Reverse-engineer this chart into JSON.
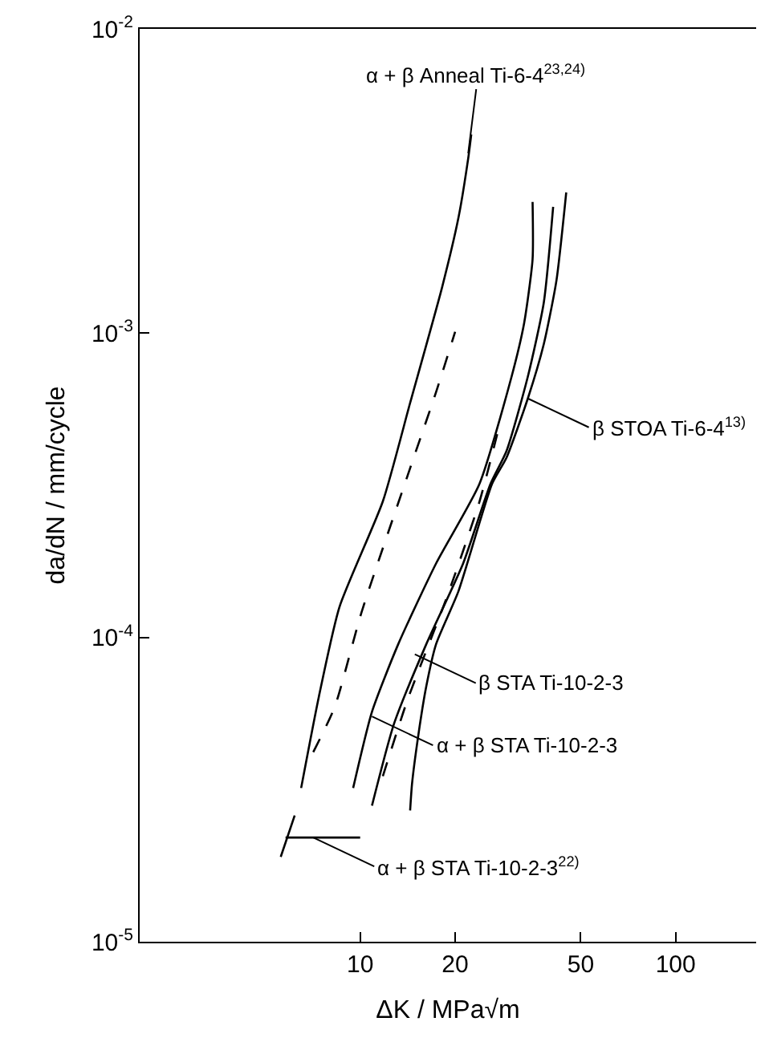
{
  "chart_data": {
    "type": "line",
    "xlabel": "ΔK / MPa√m",
    "ylabel": "da/dN / mm/cycle",
    "log": "xy",
    "marker": "none",
    "xlim": [
      2,
      180
    ],
    "xticks": [
      10,
      20,
      50,
      100
    ],
    "ylim": [
      1e-05,
      0.01
    ],
    "yticks": [
      {
        "value": 0.01,
        "label": "10$^{-2}$"
      },
      {
        "value": 0.001,
        "label": "10$^{-3}$"
      },
      {
        "value": 0.0001,
        "label": "10$^{-4}$"
      },
      {
        "value": 1e-05,
        "label": "10$^{-5}$"
      }
    ],
    "series": [
      {
        "color": "#000000",
        "line_style": "solid",
        "x": [
          6.5,
          7.4,
          8.6,
          11.8,
          14.4,
          18.2,
          20.5,
          22.0,
          22.5
        ],
        "values": [
          3.2e-05,
          6.4e-05,
          0.000126,
          0.00028,
          0.00059,
          0.00142,
          0.0024,
          0.00375,
          0.0045
        ]
      },
      {
        "color": "#000000",
        "line_style": "dashed",
        "x": [
          7.1,
          8.3,
          10.1,
          14.4,
          17.4,
          20.0
        ],
        "values": [
          4.2e-05,
          5.9e-05,
          0.000121,
          0.00036,
          0.00064,
          0.00101
        ]
      },
      {
        "color": "#000000",
        "line_style": "solid",
        "x": [
          9.5,
          10.9,
          13.2,
          17.4,
          23.9,
          30.2,
          33.1,
          35.2,
          35.2
        ],
        "values": [
          3.2e-05,
          5.7e-05,
          9.5e-05,
          0.000175,
          0.00032,
          0.00072,
          0.00108,
          0.00175,
          0.0027
        ]
      },
      {
        "color": "#000000",
        "line_style": "solid",
        "x": [
          10.9,
          12.8,
          16.2,
          21.2,
          25.9,
          29.1,
          34.0,
          38.2,
          40.9
        ],
        "values": [
          2.8e-05,
          5.2e-05,
          9.5e-05,
          0.000175,
          0.00032,
          0.00041,
          0.00072,
          0.00126,
          0.0026
        ]
      },
      {
        "color": "#000000",
        "line_style": "solid",
        "x": [
          14.4,
          14.6,
          15.3,
          16.2,
          17.4,
          20.5,
          26.2,
          29.1,
          34.0,
          38.2,
          41.9,
          45.0
        ],
        "values": [
          2.7e-05,
          3.3e-05,
          4.8e-05,
          6.9e-05,
          9.5e-05,
          0.000142,
          0.00032,
          0.00039,
          0.00061,
          0.00092,
          0.00149,
          0.0029
        ]
      },
      {
        "color": "#000000",
        "line_style": "dashed",
        "x": [
          11.8,
          14.1,
          18.9,
          23.9,
          27.8
        ],
        "values": [
          3.5e-05,
          6.2e-05,
          0.000137,
          0.00028,
          0.00051
        ]
      },
      {
        "color": "#000000",
        "line_style": "solid",
        "x": [
          5.8,
          10.0
        ],
        "values": [
          2.2e-05,
          2.2e-05
        ]
      },
      {
        "color": "#000000",
        "line_style": "solid",
        "x": [
          5.6,
          6.2
        ],
        "values": [
          1.9e-05,
          2.6e-05
        ]
      }
    ],
    "annotations": [
      {
        "text": "α + β Anneal Ti-6-4$^{23,24)}$",
        "x": 22.0,
        "y": 0.0039
      },
      {
        "text": "β STOA Ti-6-4$^{13)}$",
        "x": 34.0,
        "y": 0.00061
      },
      {
        "text": "β STA Ti-10-2-3",
        "x": 14.9,
        "y": 8.8e-05
      },
      {
        "text": "α + β STA Ti-10-2-3",
        "x": 10.9,
        "y": 5.5e-05
      },
      {
        "text": "α + β STA Ti-10-2-3$^{22)}$",
        "x": 7.1,
        "y": 2.2e-05
      }
    ]
  }
}
